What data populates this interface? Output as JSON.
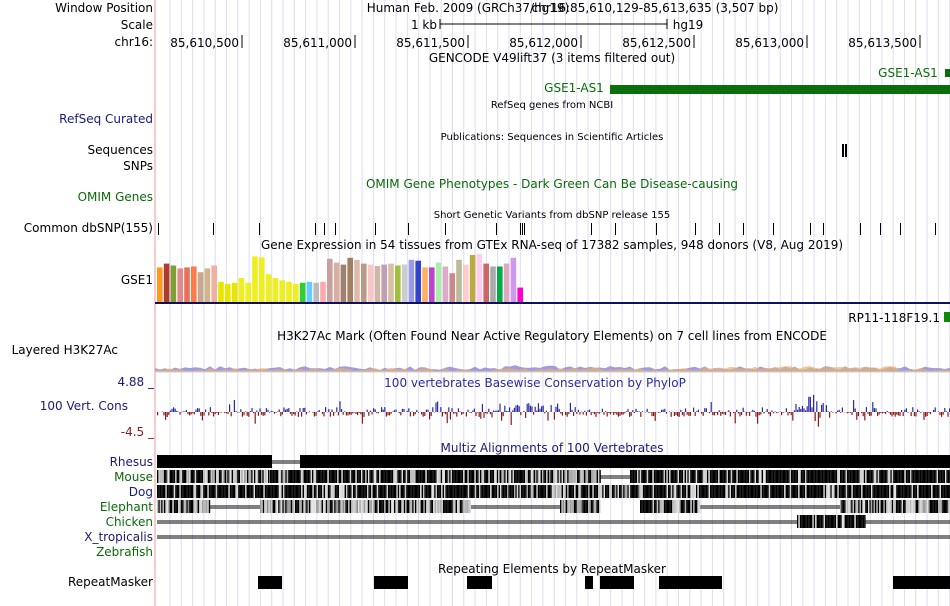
{
  "ruler": {
    "window_position_label": "Window Position",
    "scale_label": "Scale",
    "chrom_label": "chr16:",
    "assembly_text": "Human Feb. 2009 (GRCh37/hg19)",
    "position_text": "chr16:85,610,129-85,613,635 (3,507 bp)",
    "scale_text": "1 kb",
    "db_text": "hg19",
    "ticks": [
      "85,610,500",
      "85,611,000",
      "85,611,500",
      "85,612,000",
      "85,612,500",
      "85,613,000",
      "85,613,500"
    ]
  },
  "gencode": {
    "title": "GENCODE V49lift37 (3 items filtered out)",
    "gene1": "GSE1-AS1",
    "gene2": "GSE1-AS1"
  },
  "refseq": {
    "label": "RefSeq Curated",
    "title": "RefSeq genes from NCBI"
  },
  "publications": {
    "label1": "Sequences",
    "label2": "SNPs",
    "title": "Publications: Sequences in Scientific Articles"
  },
  "omim": {
    "label": "OMIM Genes",
    "title": "OMIM Gene Phenotypes - Dark Green Can Be Disease-causing"
  },
  "dbsnp": {
    "label": "Common dbSNP(155)",
    "title": "Short Genetic Variants from dbSNP release 155"
  },
  "gtex": {
    "title": "Gene Expression in 54 tissues from GTEx RNA-seq of 17382 samples, 948 donors (V8, Aug 2019)",
    "gene_label": "GSE1",
    "gene_right": "RP11-118F19.1",
    "tissue_values": [
      0.72,
      0.8,
      0.76,
      0.7,
      0.72,
      0.74,
      0.62,
      0.7,
      0.76,
      0.42,
      0.38,
      0.4,
      0.5,
      0.4,
      0.95,
      0.93,
      0.58,
      0.5,
      0.45,
      0.42,
      0.38,
      0.4,
      0.42,
      0.4,
      0.42,
      0.9,
      0.82,
      0.78,
      0.92,
      0.88,
      0.8,
      0.78,
      0.75,
      0.78,
      0.8,
      0.76,
      0.78,
      0.88,
      0.86,
      0.72,
      0.72,
      0.82,
      0.74,
      0.6,
      0.88,
      0.78,
      0.98,
      1.0,
      0.8,
      0.74,
      0.74,
      0.8,
      0.92,
      0.3
    ],
    "tissue_colors": [
      "#ff9a1c",
      "#b03a2e",
      "#7f9e34",
      "#e08a8a",
      "#e86f58",
      "#ff7a4a",
      "#c8a88c",
      "#d2b48c",
      "#f0b0a0",
      "#e6e600",
      "#e6e600",
      "#e6e600",
      "#eeee20",
      "#eeee20",
      "#eeee20",
      "#eeee20",
      "#eeee20",
      "#eeee20",
      "#eeee20",
      "#eeee20",
      "#eeee20",
      "#33cc33",
      "#66ccff",
      "#bbbbbb",
      "#ffaaaa",
      "#c8a0a0",
      "#d9b0a0",
      "#a08070",
      "#a08060",
      "#ddbbaa",
      "#bb9988",
      "#f8c8c8",
      "#d0b8a8",
      "#c0a0b0",
      "#d8c0a8",
      "#a0c040",
      "#cccccc",
      "#9999ee",
      "#3344cc",
      "#ffb060",
      "#bb44cc",
      "#aaeeaa",
      "#ddaacc",
      "#cc8888",
      "#bbbb99",
      "#ffcccc",
      "#bbaa44",
      "#ffccee",
      "#cc6666",
      "#aaaaaa",
      "#00aa44",
      "#e0a8c0",
      "#cc99ee",
      "#ff00cc"
    ]
  },
  "h3k27ac": {
    "label": "Layered H3K27Ac",
    "title": "H3K27Ac Mark (Often Found Near Active Regulatory Elements) on 7 cell lines from ENCODE"
  },
  "conservation": {
    "label": "100 Vert. Cons",
    "max_label": "4.88 _",
    "min_label": "-4.5 _",
    "title": "100 vertebrates Basewise Conservation by PhyloP"
  },
  "multiz": {
    "title": "Multiz Alignments of 100 Vertebrates",
    "species": [
      "Rhesus",
      "Mouse",
      "Dog",
      "Elephant",
      "Chicken",
      "X_tropicalis",
      "Zebrafish"
    ]
  },
  "repeatmasker": {
    "label": "RepeatMasker",
    "title": "Repeating Elements by RepeatMasker"
  },
  "colors": {
    "gencode_green": "#0a6e0a",
    "omim_green": "#0a6a0a",
    "blue_label": "#1a1a7a",
    "cons_pos": "#2a2aa8",
    "cons_neg": "#8b1a1a",
    "grid": "#dcdcf2",
    "left_border": "#ef9a9a"
  }
}
